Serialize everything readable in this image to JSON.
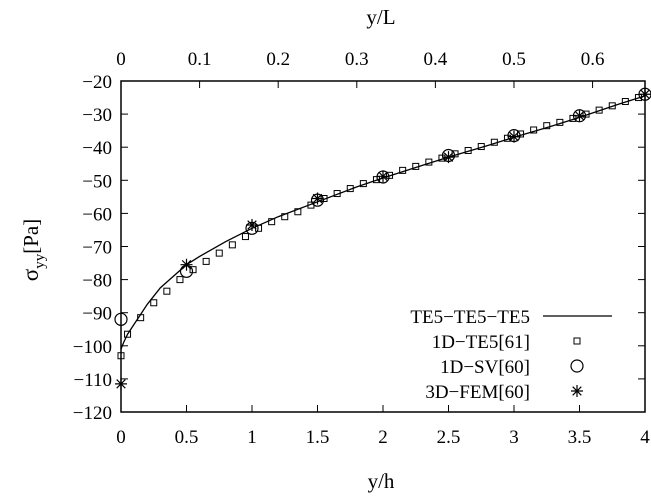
{
  "chart_data": {
    "type": "line",
    "xlabel": "y/h",
    "x2label": "y/L",
    "ylabel_main": "σ",
    "ylabel_sub": "yy",
    "ylabel_unit": "[Pa]",
    "xlim": [
      0,
      4
    ],
    "x2lim": [
      0,
      0.6667
    ],
    "ylim": [
      -120,
      -20
    ],
    "xticks": [
      "0",
      "0.5",
      "1",
      "1.5",
      "2",
      "2.5",
      "3",
      "3.5",
      "4"
    ],
    "x2ticks": [
      "0",
      "0.1",
      "0.2",
      "0.3",
      "0.4",
      "0.5",
      "0.6"
    ],
    "yticks": [
      "-20",
      "-30",
      "-40",
      "-50",
      "-60",
      "-70",
      "-80",
      "-90",
      "-100",
      "-110",
      "-120"
    ],
    "legend_position": "bottom-right",
    "series": [
      {
        "name": "TE5−TE5−TE5",
        "marker": "line",
        "x": [
          0,
          0.02,
          0.05,
          0.1,
          0.15,
          0.2,
          0.3,
          0.4,
          0.5,
          0.6,
          0.8,
          1.0,
          1.2,
          1.5,
          1.8,
          2.0,
          2.3,
          2.5,
          2.8,
          3.0,
          3.3,
          3.5,
          3.8,
          4.0
        ],
        "y": [
          -101,
          -99,
          -96.5,
          -93.5,
          -90.5,
          -87.5,
          -82.5,
          -79,
          -75.5,
          -73,
          -68.5,
          -64.5,
          -61,
          -56.5,
          -52,
          -49.3,
          -45.5,
          -43,
          -39.5,
          -37,
          -33.5,
          -31,
          -27,
          -24.5
        ]
      },
      {
        "name": "1D−TE5[61]",
        "marker": "square",
        "x": [
          0,
          0.05,
          0.15,
          0.25,
          0.35,
          0.45,
          0.55,
          0.65,
          0.75,
          0.85,
          0.95,
          1.05,
          1.15,
          1.25,
          1.35,
          1.45,
          1.55,
          1.65,
          1.75,
          1.85,
          1.95,
          2.05,
          2.15,
          2.25,
          2.35,
          2.45,
          2.55,
          2.65,
          2.75,
          2.85,
          2.95,
          3.05,
          3.15,
          3.25,
          3.35,
          3.45,
          3.55,
          3.65,
          3.75,
          3.85,
          3.95
        ],
        "y": [
          -103,
          -96.5,
          -91.5,
          -87,
          -83.5,
          -80,
          -77,
          -74.5,
          -72,
          -69.5,
          -67,
          -64.5,
          -62.5,
          -61,
          -59.5,
          -57.5,
          -55.5,
          -54,
          -52.5,
          -51,
          -49.8,
          -48.5,
          -47,
          -45.8,
          -44.5,
          -43.3,
          -42,
          -41,
          -39.8,
          -38.5,
          -37.3,
          -36,
          -34.8,
          -33.5,
          -32.5,
          -31.3,
          -30,
          -28.8,
          -27.5,
          -26.2,
          -25
        ]
      },
      {
        "name": "1D−SV[60]",
        "marker": "circle",
        "x": [
          0,
          0.5,
          1.0,
          1.5,
          2.0,
          2.5,
          3.0,
          3.5,
          4.0
        ],
        "y": [
          -92,
          -77.5,
          -64.5,
          -56,
          -49,
          -42.5,
          -36.5,
          -30.5,
          -24
        ]
      },
      {
        "name": "3D−FEM[60]",
        "marker": "star",
        "x": [
          0,
          0.5,
          1.0,
          1.5,
          2.0,
          2.5,
          3.0,
          3.5,
          4.0
        ],
        "y": [
          -111.5,
          -75.5,
          -63.5,
          -55.5,
          -48.8,
          -43,
          -36.8,
          -30.5,
          -24
        ]
      }
    ]
  }
}
